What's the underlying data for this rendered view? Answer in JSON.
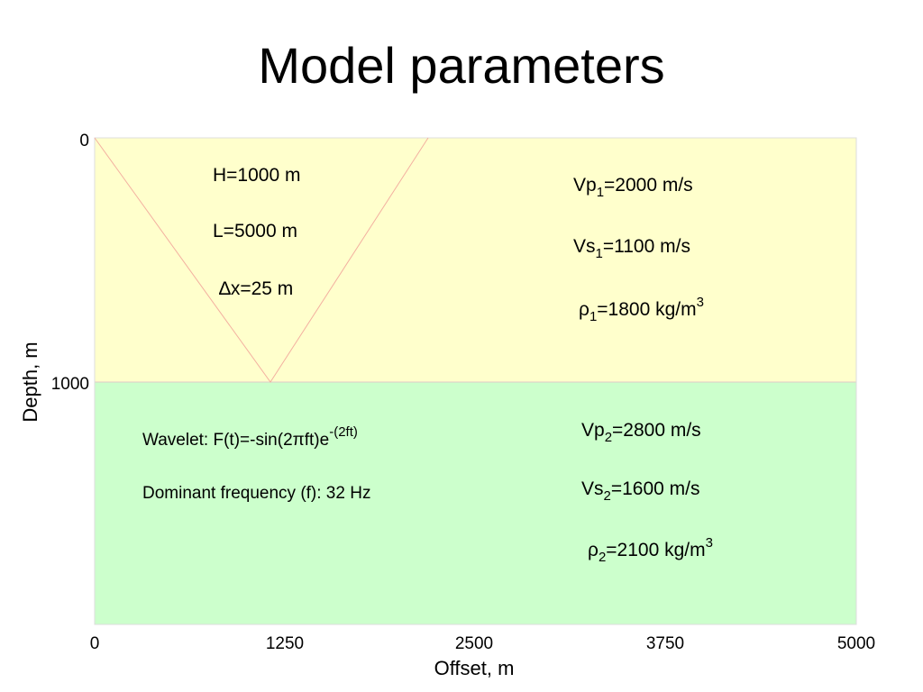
{
  "title": "Model parameters",
  "axes": {
    "x_label": "Offset, m",
    "y_label": "Depth, m",
    "x_ticks": [
      "0",
      "1250",
      "2500",
      "3750",
      "5000"
    ],
    "y_ticks": [
      "0",
      "1000"
    ]
  },
  "layer1": {
    "h": "H=1000 m",
    "l": "L=5000 m",
    "dx": "∆x=25 m",
    "vp": [
      "Vp",
      "1",
      "=2000 m/s"
    ],
    "vs": [
      "Vs",
      "1",
      "=1100 m/s"
    ],
    "rho": [
      "ρ",
      "1",
      "=1800 kg/m",
      "3"
    ]
  },
  "layer2": {
    "wavelet": [
      "Wavelet: F(t)=-sin(2πft)e",
      "-(2ft)"
    ],
    "frequency": "Dominant frequency (f): 32 Hz",
    "vp": [
      "Vp",
      "2",
      "=2800 m/s"
    ],
    "vs": [
      "Vs",
      "2",
      "=1600 m/s"
    ],
    "rho": [
      "ρ",
      "2",
      "=2100 kg/m",
      "3"
    ]
  }
}
